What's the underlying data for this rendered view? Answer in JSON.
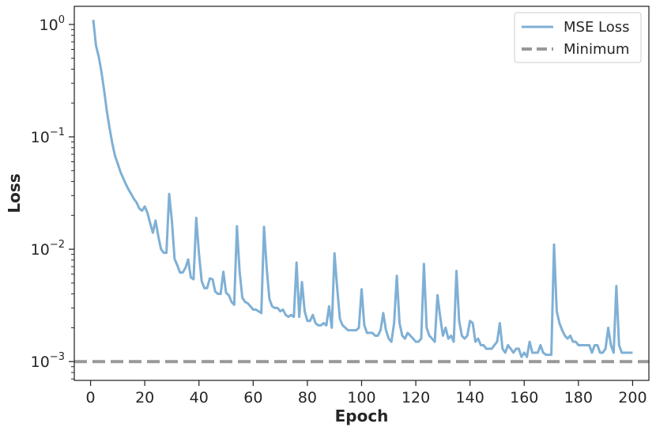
{
  "chart_data": {
    "type": "line",
    "title": "",
    "xlabel": "Epoch",
    "ylabel": "Loss",
    "xlim": [
      -6,
      206
    ],
    "ylim": [
      0.00068,
      1.45
    ],
    "yscale": "log",
    "grid": false,
    "legend_position": "top-right",
    "x_ticks": [
      0,
      20,
      40,
      60,
      80,
      100,
      120,
      140,
      160,
      180,
      200
    ],
    "y_ticks": [
      {
        "value": 0.001,
        "base": "10",
        "exp": "−3"
      },
      {
        "value": 0.01,
        "base": "10",
        "exp": "−2"
      },
      {
        "value": 0.1,
        "base": "10",
        "exp": "−1"
      },
      {
        "value": 1,
        "base": "10",
        "exp": "0"
      }
    ],
    "series": [
      {
        "name": "MSE Loss",
        "color": "#7fb0d5",
        "style": "solid",
        "x_start": 1,
        "x_step": 1,
        "values": [
          1.1,
          0.65,
          0.52,
          0.38,
          0.26,
          0.17,
          0.12,
          0.088,
          0.068,
          0.058,
          0.049,
          0.043,
          0.038,
          0.034,
          0.031,
          0.028,
          0.026,
          0.023,
          0.022,
          0.024,
          0.021,
          0.017,
          0.014,
          0.018,
          0.013,
          0.01,
          0.0093,
          0.0093,
          0.031,
          0.018,
          0.0082,
          0.0072,
          0.0062,
          0.0062,
          0.0068,
          0.0081,
          0.0056,
          0.0054,
          0.019,
          0.0091,
          0.0052,
          0.0045,
          0.0045,
          0.0055,
          0.0054,
          0.0042,
          0.004,
          0.004,
          0.0063,
          0.0041,
          0.0039,
          0.0034,
          0.0032,
          0.016,
          0.0063,
          0.0037,
          0.0034,
          0.0033,
          0.0031,
          0.0029,
          0.0029,
          0.0028,
          0.0027,
          0.0158,
          0.0067,
          0.0036,
          0.0031,
          0.003,
          0.003,
          0.0028,
          0.0029,
          0.0026,
          0.0025,
          0.0026,
          0.0025,
          0.0076,
          0.0025,
          0.0051,
          0.0028,
          0.0023,
          0.0023,
          0.0026,
          0.0022,
          0.0021,
          0.0021,
          0.0022,
          0.0021,
          0.0031,
          0.002,
          0.0092,
          0.0045,
          0.0024,
          0.0021,
          0.002,
          0.0019,
          0.0019,
          0.0019,
          0.0019,
          0.002,
          0.0044,
          0.0021,
          0.0018,
          0.0018,
          0.0018,
          0.0017,
          0.0017,
          0.0019,
          0.0027,
          0.0019,
          0.0016,
          0.0015,
          0.0022,
          0.0058,
          0.0022,
          0.0017,
          0.0016,
          0.0018,
          0.0017,
          0.0016,
          0.0015,
          0.0015,
          0.0016,
          0.0074,
          0.002,
          0.0017,
          0.0016,
          0.0015,
          0.0039,
          0.0025,
          0.0017,
          0.002,
          0.0016,
          0.0017,
          0.0015,
          0.0064,
          0.0023,
          0.0017,
          0.0016,
          0.0017,
          0.0023,
          0.0022,
          0.0015,
          0.0016,
          0.0014,
          0.0014,
          0.0013,
          0.0013,
          0.0013,
          0.0014,
          0.0015,
          0.0022,
          0.0013,
          0.0012,
          0.0014,
          0.0013,
          0.0012,
          0.0013,
          0.0013,
          0.0011,
          0.0012,
          0.0011,
          0.0015,
          0.0012,
          0.0012,
          0.0012,
          0.0014,
          0.0012,
          0.00115,
          0.00115,
          0.00115,
          0.011,
          0.0028,
          0.0022,
          0.0019,
          0.0017,
          0.0016,
          0.0017,
          0.0015,
          0.0015,
          0.0014,
          0.0014,
          0.0014,
          0.0014,
          0.0014,
          0.0012,
          0.0014,
          0.0014,
          0.0012,
          0.0012,
          0.0013,
          0.002,
          0.0014,
          0.0012,
          0.0047,
          0.0014,
          0.0012,
          0.0012,
          0.0012,
          0.0012,
          0.0012
        ]
      },
      {
        "name": "Minimum",
        "color": "#999999",
        "style": "dashed",
        "value": 0.001
      }
    ]
  }
}
